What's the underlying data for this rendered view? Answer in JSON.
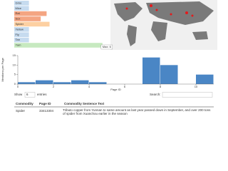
{
  "bar_chart": {
    "type": "hbar",
    "categories": [
      "Gmo",
      "Mice",
      "Rat",
      "Sox",
      "Spider",
      "Yellow",
      "Fly",
      "Tan",
      "Yam"
    ],
    "values": [
      1,
      1,
      2.2,
      1.8,
      2.4,
      1,
      1,
      1,
      6
    ],
    "colors": [
      "#c6dbef",
      "#c6dbef",
      "#f4a582",
      "#f4a582",
      "#fdd0a2",
      "#c6dbef",
      "#c6dbef",
      "#c6dbef",
      "#c7e9c0"
    ],
    "xlim": [
      0,
      6.3
    ],
    "tooltip": "Max: 6"
  },
  "histogram": {
    "type": "histogram",
    "bins": [
      0,
      1,
      2,
      3,
      4,
      5,
      6,
      7,
      8,
      9,
      10,
      11
    ],
    "counts": [
      1,
      2,
      1,
      2,
      1,
      0,
      0,
      14,
      10,
      0,
      5
    ],
    "color": "#4a86c5",
    "ylim": [
      0,
      15
    ],
    "yticks": [
      0,
      5,
      10,
      15
    ],
    "xticks": [
      0,
      2,
      4,
      6,
      8,
      10
    ],
    "x_label": "Page ID",
    "y_label": "Mentions per Page"
  },
  "table": {
    "show": "Show",
    "entries_count": "6",
    "entries": "entries",
    "search": "Search:",
    "headers": [
      "Commodity",
      "Page ID",
      "Commodity Sentence Text"
    ],
    "rows": [
      [
        "Spider",
        "33413304",
        "Tributo copper from Yunnan to same amount as last year passed down in September, and over 200 tons of spider from Xuanchou earlier in the season"
      ]
    ]
  }
}
